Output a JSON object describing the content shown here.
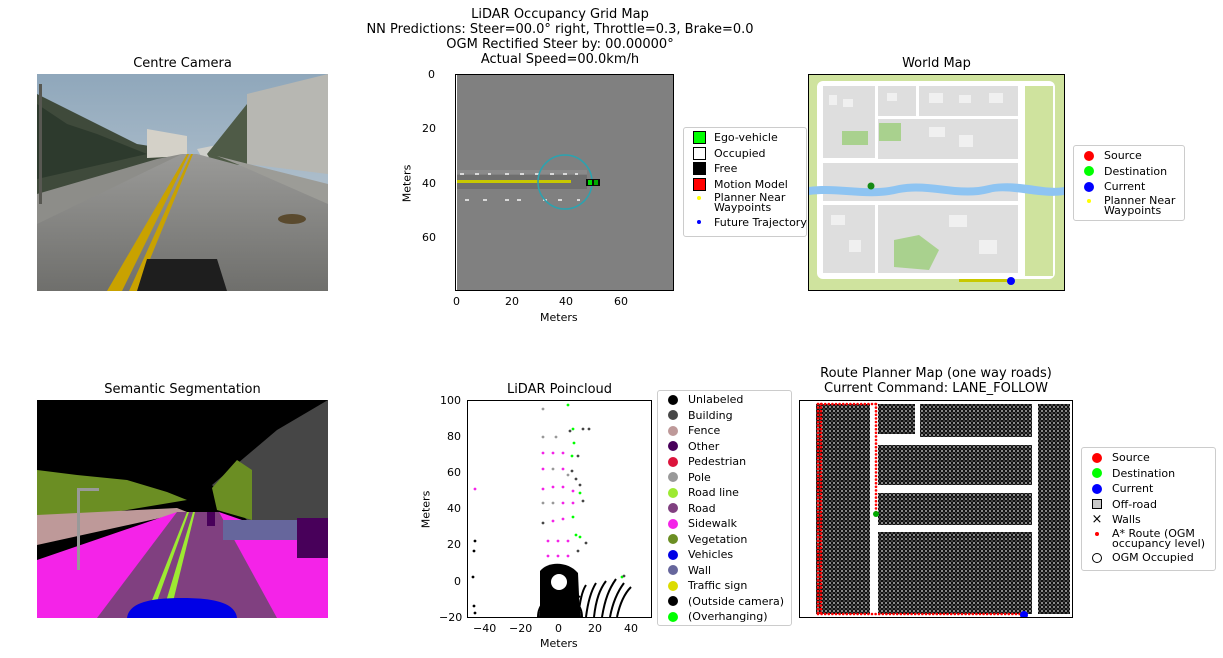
{
  "suptitle": {
    "line1": "LiDAR Occupancy Grid Map",
    "line2": "NN Predictions: Steer=00.0° right, Throttle=0.3, Brake=0.0",
    "line3": "OGM Rectified Steer by: 00.00000°",
    "line4": "Actual Speed=00.0km/h"
  },
  "panels": {
    "centre_camera": {
      "title": "Centre Camera"
    },
    "ogm": {
      "xlabel": "Meters",
      "ylabel": "Meters",
      "xticks": [
        "0",
        "20",
        "40",
        "60"
      ],
      "yticks": [
        "0",
        "20",
        "40",
        "60"
      ],
      "legend": [
        {
          "label": "Ego-vehicle",
          "icon": "green-square",
          "color": "#00ff00"
        },
        {
          "label": "Occupied",
          "icon": "white-square",
          "color": "#ffffff"
        },
        {
          "label": "Free",
          "icon": "black-square",
          "color": "#000000"
        },
        {
          "label": "Motion Model",
          "icon": "red-square",
          "color": "#ff0000"
        },
        {
          "label": "Planner Near\nWaypoints",
          "icon": "yellow-dot",
          "color": "#ffff00"
        },
        {
          "label": "Future Trajectory",
          "icon": "blue-dot",
          "color": "#0000ff"
        }
      ]
    },
    "world_map": {
      "title": "World Map",
      "legend": [
        {
          "label": "Source",
          "icon": "red-circle",
          "color": "#ff0000"
        },
        {
          "label": "Destination",
          "icon": "green-circle",
          "color": "#00ff00"
        },
        {
          "label": "Current",
          "icon": "blue-circle",
          "color": "#0000ff"
        },
        {
          "label": "Planner Near\nWaypoints",
          "icon": "yellow-dot",
          "color": "#ffff00"
        }
      ]
    },
    "semantic": {
      "title": "Semantic Segmentation"
    },
    "lidar": {
      "title": "LiDAR Poincloud",
      "xlabel": "Meters",
      "ylabel": "Meters",
      "xticks": [
        "−40",
        "−20",
        "0",
        "20",
        "40"
      ],
      "yticks": [
        "100",
        "80",
        "60",
        "40",
        "20",
        "0",
        "−20"
      ],
      "legend": [
        {
          "label": "Unlabeled",
          "color": "#000000"
        },
        {
          "label": "Building",
          "color": "#464646"
        },
        {
          "label": "Fence",
          "color": "#be9999"
        },
        {
          "label": "Other",
          "color": "#48005a"
        },
        {
          "label": "Pedestrian",
          "color": "#dc143c"
        },
        {
          "label": "Pole",
          "color": "#999999"
        },
        {
          "label": "Road line",
          "color": "#9dea32"
        },
        {
          "label": "Road",
          "color": "#804080"
        },
        {
          "label": "Sidewalk",
          "color": "#f423e8"
        },
        {
          "label": "Vegetation",
          "color": "#6b8e23"
        },
        {
          "label": "Vehicles",
          "color": "#0000e6"
        },
        {
          "label": "Wall",
          "color": "#66669c"
        },
        {
          "label": "Traffic sign",
          "color": "#dcdc00"
        },
        {
          "label": "(Outside camera)",
          "color": "#000000"
        },
        {
          "label": "(Overhanging)",
          "color": "#00ff00"
        }
      ]
    },
    "route_planner": {
      "title_line1": "Route Planner Map (one way roads)",
      "title_line2": "Current Command: LANE_FOLLOW",
      "legend": [
        {
          "label": "Source",
          "icon": "red-circle",
          "color": "#ff0000"
        },
        {
          "label": "Destination",
          "icon": "green-circle",
          "color": "#00ff00"
        },
        {
          "label": "Current",
          "icon": "blue-circle",
          "color": "#0000ff"
        },
        {
          "label": "Off-road",
          "icon": "gray-square"
        },
        {
          "label": "Walls",
          "icon": "x-mark"
        },
        {
          "label": "A* Route (OGM\noccupancy level)",
          "icon": "red-small-dot",
          "color": "#ff0000"
        },
        {
          "label": "OGM Occupied",
          "icon": "hollow-circle"
        }
      ]
    }
  }
}
